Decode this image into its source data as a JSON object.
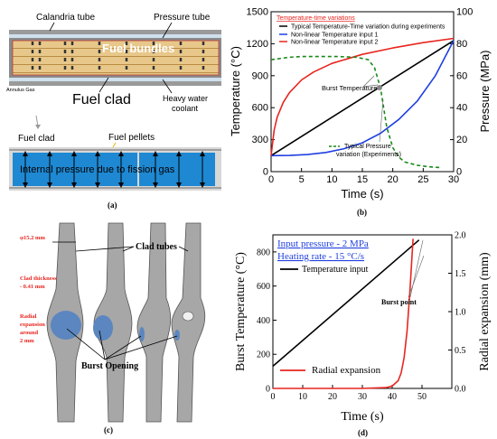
{
  "panels": {
    "a": {
      "label": "(a)",
      "calandria_tube": "Calandria tube",
      "pressure_tube": "Pressure tube",
      "fuel_bundles": "Fuel bundles",
      "annulus_gas": "Annulus Gas",
      "fuel_clad_big": "Fuel clad",
      "heavy_water_1": "Heavy water",
      "heavy_water_2": "coolant",
      "fuel_clad_small": "Fuel clad",
      "fuel_pellets": "Fuel pellets",
      "internal_pressure": "Internal pressure due to fission gas"
    },
    "b": {
      "label": "(b)",
      "legend_title": "Temperature-time variations",
      "burst_label": "Burst Temperature",
      "pressure_annot_1": "Typical Pressure",
      "pressure_annot_2": "variation (Experiments)"
    },
    "c": {
      "label": "(c)",
      "diameter": "φ15.2 mm",
      "clad_tubes": "Clad tubes",
      "clad_thickness_1": "Clad thickness",
      "clad_thickness_2": "- 0.41 mm",
      "radial_1": "Radial",
      "radial_2": "expansion",
      "radial_3": "around",
      "radial_4": "2 mm",
      "burst_opening": "Burst Opening"
    },
    "d": {
      "label": "(d)",
      "input_pressure": "Input pressure - 2 MPa",
      "heating_rate": "Heating rate - 15 °C/s",
      "burst_point": "Burst point"
    }
  },
  "chart_data": [
    {
      "panel": "b",
      "type": "line",
      "xlabel": "Time (s)",
      "ylabel": "Temperature (°C)",
      "y2label": "Pressure (MPa)",
      "xlim": [
        0,
        30
      ],
      "ylim": [
        0,
        1500
      ],
      "y2lim": [
        0,
        100
      ],
      "xticks": [
        0,
        5,
        10,
        15,
        20,
        25,
        30
      ],
      "yticks": [
        0,
        300,
        600,
        900,
        1200,
        1500
      ],
      "y2ticks": [
        0,
        20,
        40,
        60,
        80,
        100
      ],
      "series": [
        {
          "name": "Typical Temperature-Time variation during experiments",
          "color": "#000000",
          "axis": "left",
          "style": "solid",
          "x": [
            0,
            30
          ],
          "y": [
            150,
            1230
          ]
        },
        {
          "name": "Non-linear Temperature input 1",
          "color": "#1f3fe0",
          "axis": "left",
          "style": "solid",
          "x": [
            0,
            3,
            6,
            9,
            12,
            15,
            18,
            21,
            24,
            27,
            30
          ],
          "y": [
            150,
            152,
            160,
            180,
            215,
            270,
            360,
            490,
            660,
            900,
            1230
          ]
        },
        {
          "name": "Non-linear Temperature input 2",
          "color": "#e8251f",
          "axis": "left",
          "style": "solid",
          "x": [
            0,
            0.5,
            1,
            2,
            3,
            5,
            7,
            10,
            15,
            20,
            25,
            30
          ],
          "y": [
            150,
            390,
            510,
            650,
            740,
            860,
            935,
            1015,
            1100,
            1160,
            1210,
            1250
          ]
        },
        {
          "name": "Typical Pressure variation (Experiments)",
          "color": "#1a8a1a",
          "axis": "right",
          "style": "dashed",
          "x": [
            0,
            1,
            3,
            5,
            8,
            11,
            14,
            16,
            17,
            18,
            19,
            20,
            21,
            22,
            24,
            26,
            28
          ],
          "y": [
            70,
            70.5,
            71.5,
            72,
            72,
            72,
            71.5,
            70,
            65,
            52,
            28,
            15,
            9,
            6,
            4,
            3,
            2.5
          ]
        }
      ]
    },
    {
      "panel": "d",
      "type": "line",
      "xlabel": "Time (s)",
      "ylabel": "Burst Temperature (°C)",
      "y2label": "Radial expansion (mm)",
      "xlim": [
        0,
        60
      ],
      "ylim": [
        0,
        900
      ],
      "y2lim": [
        0,
        2.0
      ],
      "xticks": [
        0,
        10,
        20,
        30,
        40,
        50
      ],
      "yticks": [
        0,
        200,
        400,
        600,
        800
      ],
      "y2ticks": [
        0,
        0.5,
        1.0,
        1.5,
        2.0
      ],
      "series": [
        {
          "name": "Temperature input",
          "color": "#000000",
          "axis": "left",
          "x": [
            0,
            49
          ],
          "y": [
            130,
            870
          ]
        },
        {
          "name": "Radial expansion",
          "color": "#e8251f",
          "axis": "right",
          "x": [
            0,
            30,
            38,
            40,
            42,
            43,
            44,
            45,
            46,
            47
          ],
          "y": [
            0,
            0,
            0.01,
            0.03,
            0.1,
            0.2,
            0.4,
            0.75,
            1.3,
            1.95
          ]
        }
      ]
    }
  ]
}
